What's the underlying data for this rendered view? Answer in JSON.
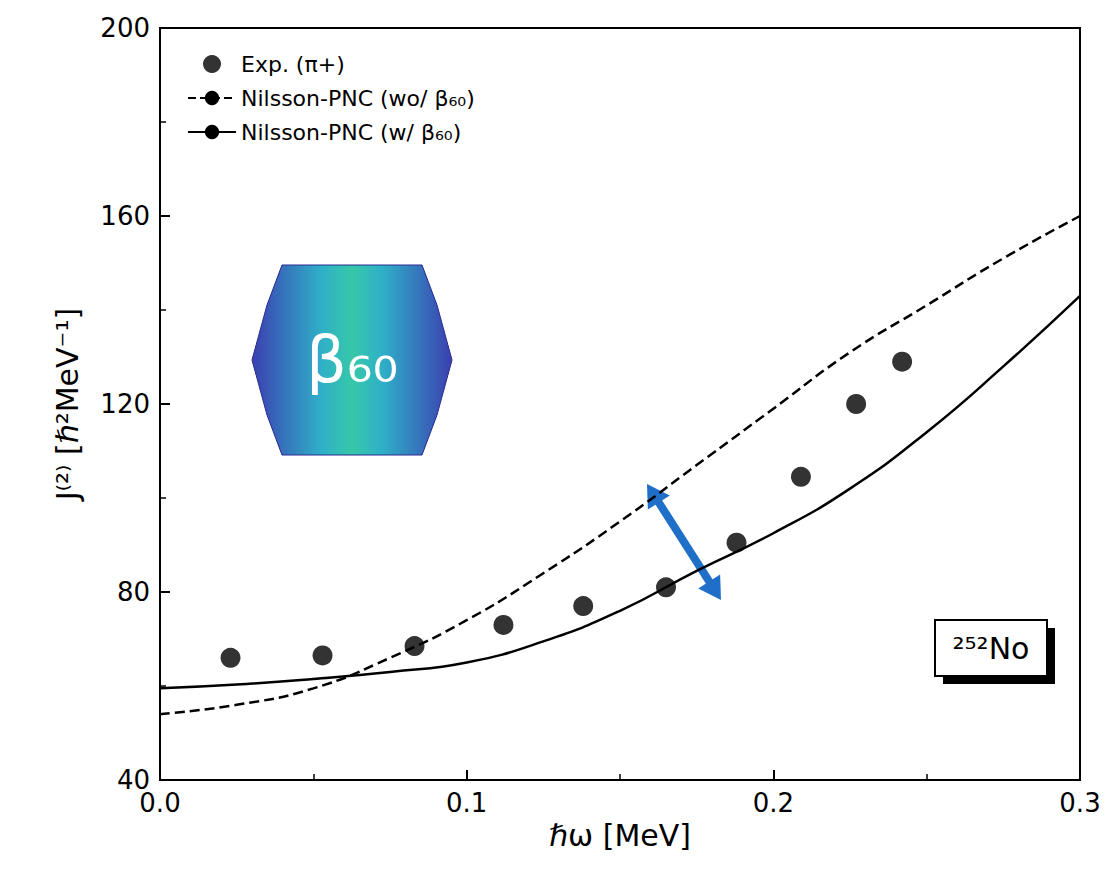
{
  "chart_data": {
    "type": "line",
    "x_label": "ℏω [MeV]",
    "y_label": "J⁽²⁾ [ℏ²MeV⁻¹]",
    "xlim": [
      0,
      0.3
    ],
    "xticks": [
      {
        "value": 0,
        "label": "0.0"
      },
      0.1,
      0.2,
      0.3
    ],
    "ylim": [
      40,
      200
    ],
    "yticks": [
      40,
      80,
      120,
      160,
      200
    ],
    "grid": false,
    "legend": "upper left",
    "annotations": [
      {
        "text": "β₆₀"
      },
      {
        "text": "²⁵²No"
      }
    ],
    "series": [
      {
        "name": "Exp. (π+)",
        "type": "scatter",
        "marker": "circle",
        "color": "#000000",
        "x": [
          0.023,
          0.053,
          0.083,
          0.112,
          0.138,
          0.165,
          0.188,
          0.209,
          0.227,
          0.242
        ],
        "values": [
          66,
          66.5,
          68.5,
          73,
          77,
          81,
          90.5,
          104.5,
          120,
          129
        ]
      },
      {
        "name": "Nilsson-PNC (wo/ β₆₀)",
        "type": "line",
        "line_style": "dashed",
        "color": "#000000",
        "x": [
          0,
          0.025,
          0.05,
          0.075,
          0.1,
          0.125,
          0.15,
          0.175,
          0.2,
          0.225,
          0.25,
          0.275,
          0.3
        ],
        "values": [
          54,
          56,
          59.5,
          66,
          74,
          84,
          95,
          107,
          119,
          131,
          141,
          151,
          160
        ]
      },
      {
        "name": "Nilsson-PNC (w/ β₆₀)",
        "type": "line",
        "line_style": "solid",
        "color": "#000000",
        "x": [
          0,
          0.025,
          0.05,
          0.075,
          0.1,
          0.125,
          0.15,
          0.175,
          0.2,
          0.225,
          0.25,
          0.275,
          0.3
        ],
        "values": [
          59.5,
          60.3,
          61.5,
          63,
          65,
          69.5,
          76,
          84.5,
          92.5,
          102,
          114,
          128,
          143
        ]
      }
    ]
  }
}
